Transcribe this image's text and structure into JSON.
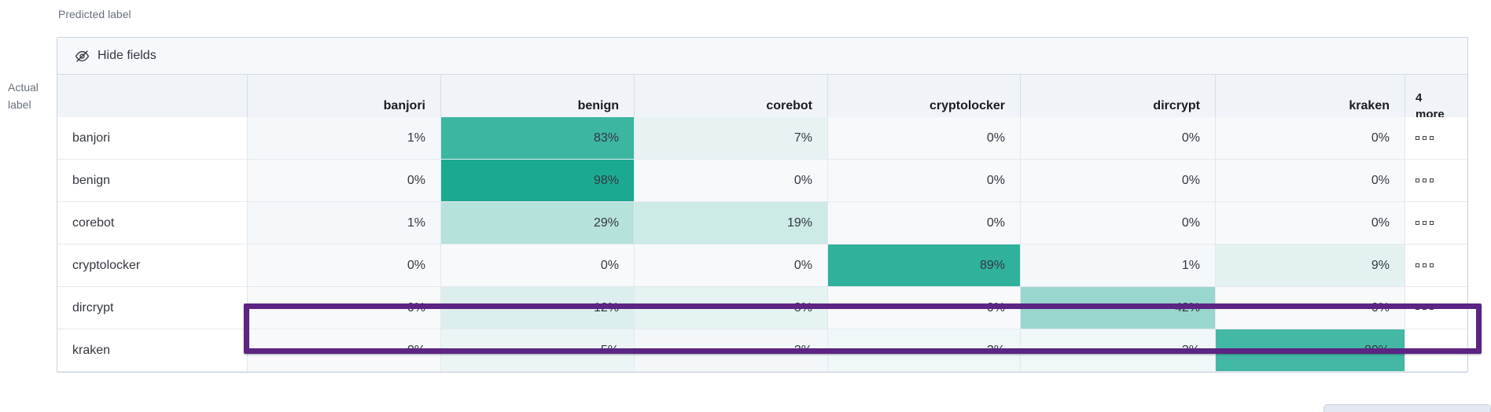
{
  "ui": {
    "axis": {
      "predicted": "Predicted label",
      "actual": "Actual label"
    },
    "toolbar": {
      "hide_fields_label": "Hide fields",
      "hide_fields_icon": "eye-slash-icon"
    },
    "row_actions_icon": "boxes-horizontal-icon"
  },
  "table": {
    "columns": [
      "banjori",
      "benign",
      "corebot",
      "cryptolocker",
      "dircrypt",
      "kraken"
    ],
    "more_header": {
      "count": "4",
      "label": "more"
    },
    "rows": [
      {
        "label": "banjori",
        "cells": [
          "1%",
          "83%",
          "7%",
          "0%",
          "0%",
          "0%"
        ]
      },
      {
        "label": "benign",
        "cells": [
          "0%",
          "98%",
          "0%",
          "0%",
          "0%",
          "0%"
        ]
      },
      {
        "label": "corebot",
        "cells": [
          "1%",
          "29%",
          "19%",
          "0%",
          "0%",
          "0%"
        ]
      },
      {
        "label": "cryptolocker",
        "cells": [
          "0%",
          "0%",
          "0%",
          "89%",
          "1%",
          "9%"
        ]
      },
      {
        "label": "dircrypt",
        "cells": [
          "0%",
          "12%",
          "8%",
          "0%",
          "42%",
          "0%"
        ]
      },
      {
        "label": "kraken",
        "cells": [
          "0%",
          "5%",
          "2%",
          "3%",
          "3%",
          "80%"
        ]
      }
    ],
    "highlighted_row": "dircrypt"
  },
  "colors": {
    "heat_min": "#F7F9FB",
    "heat_max": "#16A88F",
    "highlight": "#5C2483",
    "header_bg": "#F0F3F8",
    "toolbar_bg": "#F6F8FC",
    "grid_border": "#D3DAE6",
    "text": "#343741",
    "muted_text": "#69707D"
  },
  "chart_data": {
    "type": "heatmap",
    "xlabel": "Predicted label",
    "ylabel": "Actual label",
    "x": [
      "banjori",
      "benign",
      "corebot",
      "cryptolocker",
      "dircrypt",
      "kraken"
    ],
    "x_truncated_note": "4 more",
    "y": [
      "banjori",
      "benign",
      "corebot",
      "cryptolocker",
      "dircrypt",
      "kraken"
    ],
    "values_percent": [
      [
        1,
        83,
        7,
        0,
        0,
        0
      ],
      [
        0,
        98,
        0,
        0,
        0,
        0
      ],
      [
        1,
        29,
        19,
        0,
        0,
        0
      ],
      [
        0,
        0,
        0,
        89,
        1,
        9
      ],
      [
        0,
        12,
        8,
        0,
        42,
        0
      ],
      [
        0,
        5,
        2,
        3,
        3,
        80
      ]
    ],
    "color_scale": {
      "type": "linear",
      "domain": [
        0,
        100
      ],
      "range": [
        "#F7F9FB",
        "#16A88F"
      ]
    },
    "highlighted_row": "dircrypt",
    "legend": "off",
    "grid": "on"
  }
}
